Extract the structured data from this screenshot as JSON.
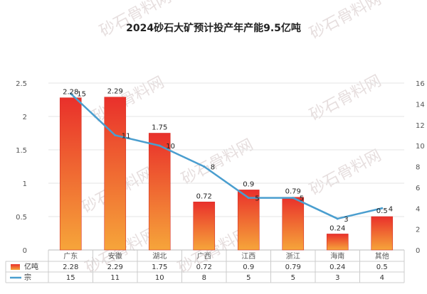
{
  "watermark": "砂石骨料网",
  "chart_data": {
    "type": "bar",
    "title": "2024砂石大矿预计投产年产能9.5亿吨",
    "categories": [
      "广东",
      "安徽",
      "湖北",
      "广西",
      "江西",
      "浙江",
      "海南",
      "其他"
    ],
    "series": [
      {
        "name": "亿吨",
        "type": "bar",
        "axis": "left",
        "values": [
          2.28,
          2.29,
          1.75,
          0.72,
          0.9,
          0.79,
          0.24,
          0.5
        ],
        "labels": [
          "2.28",
          "2.29",
          "1.75",
          "0.72",
          "0.9",
          "0.79",
          "0.24",
          "0.5"
        ]
      },
      {
        "name": "宗",
        "type": "line",
        "axis": "right",
        "values": [
          15,
          11,
          10,
          8,
          5,
          5,
          3,
          4
        ],
        "labels": [
          "15",
          "11",
          "10",
          "8",
          "5",
          "5",
          "3",
          "4"
        ]
      }
    ],
    "left_axis": {
      "min": 0,
      "max": 2.5,
      "ticks": [
        "0",
        "0.5",
        "1",
        "1.5",
        "2",
        "2.5"
      ]
    },
    "right_axis": {
      "min": 0,
      "max": 16,
      "ticks": [
        "0",
        "2",
        "4",
        "6",
        "8",
        "10",
        "12",
        "14",
        "16"
      ]
    },
    "colors": {
      "bar_top": "#e9302b",
      "bar_bottom": "#f6a53a",
      "line": "#4a9ecf"
    },
    "table": {
      "rows": [
        {
          "label": "亿吨",
          "values": [
            "2.28",
            "2.29",
            "1.75",
            "0.72",
            "0.9",
            "0.79",
            "0.24",
            "0.5"
          ]
        },
        {
          "label": "宗",
          "values": [
            "15",
            "11",
            "10",
            "8",
            "5",
            "5",
            "3",
            "4"
          ]
        }
      ]
    }
  }
}
